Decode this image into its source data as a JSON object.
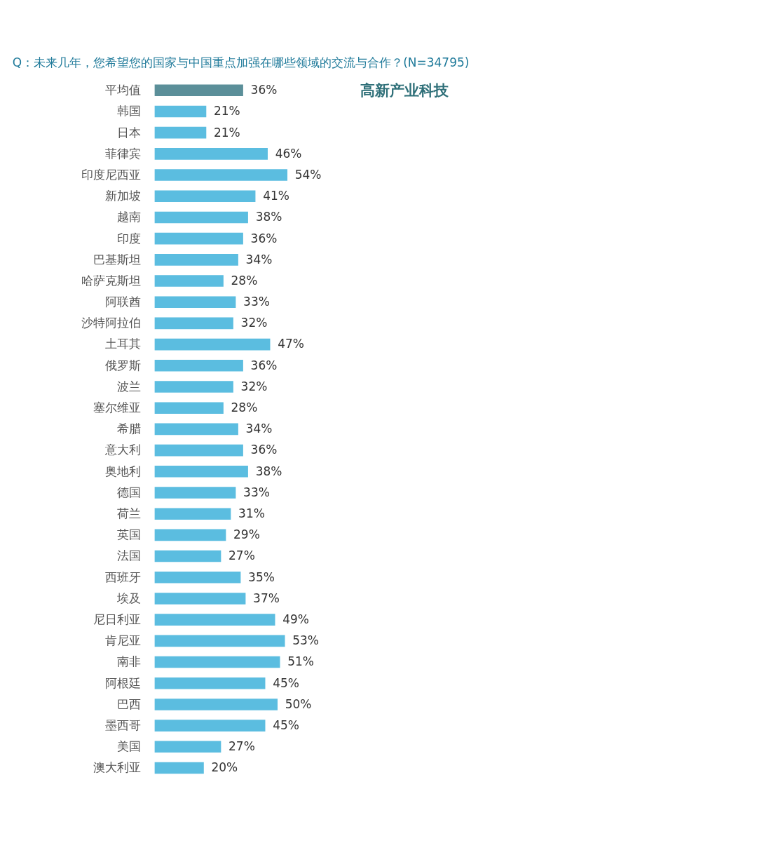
{
  "chart_data": {
    "type": "bar",
    "orientation": "horizontal",
    "title": "Q：未来几年，您希望您的国家与中国重点加强在哪些领域的交流与合作？(N=34795)",
    "annotations": [
      "高新产业科技"
    ],
    "categories": [
      "平均值",
      "韩国",
      "日本",
      "菲律宾",
      "印度尼西亚",
      "新加坡",
      "越南",
      "印度",
      "巴基斯坦",
      "哈萨克斯坦",
      "阿联酋",
      "沙特阿拉伯",
      "土耳其",
      "俄罗斯",
      "波兰",
      "塞尔维亚",
      "希腊",
      "意大利",
      "奥地利",
      "德国",
      "荷兰",
      "英国",
      "法国",
      "西班牙",
      "埃及",
      "尼日利亚",
      "肯尼亚",
      "南非",
      "阿根廷",
      "巴西",
      "墨西哥",
      "美国",
      "澳大利亚"
    ],
    "values": [
      36,
      21,
      21,
      46,
      54,
      41,
      38,
      36,
      34,
      28,
      33,
      32,
      47,
      36,
      32,
      28,
      34,
      36,
      38,
      33,
      31,
      29,
      27,
      35,
      37,
      49,
      53,
      51,
      45,
      50,
      45,
      27,
      20
    ],
    "value_labels": [
      "36%",
      "21%",
      "21%",
      "46%",
      "54%",
      "41%",
      "38%",
      "36%",
      "34%",
      "28%",
      "33%",
      "32%",
      "47%",
      "36%",
      "32%",
      "28%",
      "34%",
      "36%",
      "38%",
      "33%",
      "31%",
      "29%",
      "27%",
      "35%",
      "37%",
      "49%",
      "53%",
      "51%",
      "45%",
      "50%",
      "45%",
      "27%",
      "20%"
    ],
    "colors": [
      "#5b8f99",
      "#5bbde0",
      "#5bbde0",
      "#5bbde0",
      "#5bbde0",
      "#5bbde0",
      "#5bbde0",
      "#5bbde0",
      "#5bbde0",
      "#5bbde0",
      "#5bbde0",
      "#5bbde0",
      "#5bbde0",
      "#5bbde0",
      "#5bbde0",
      "#5bbde0",
      "#5bbde0",
      "#5bbde0",
      "#5bbde0",
      "#5bbde0",
      "#5bbde0",
      "#5bbde0",
      "#5bbde0",
      "#5bbde0",
      "#5bbde0",
      "#5bbde0",
      "#5bbde0",
      "#5bbde0",
      "#5bbde0",
      "#5bbde0",
      "#5bbde0",
      "#5bbde0",
      "#5bbde0"
    ],
    "grid": false
  }
}
